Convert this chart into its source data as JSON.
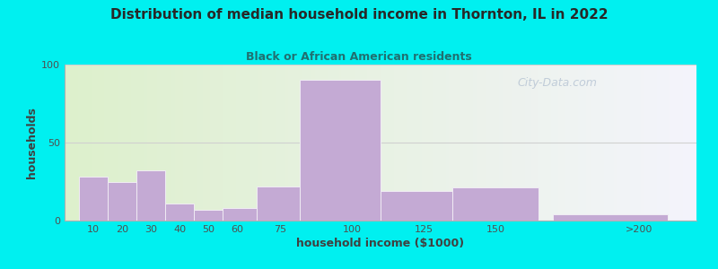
{
  "title": "Distribution of median household income in Thornton, IL in 2022",
  "subtitle": "Black or African American residents",
  "xlabel": "household income ($1000)",
  "ylabel": "households",
  "bar_heights": [
    28,
    25,
    32,
    11,
    7,
    8,
    22,
    90,
    19,
    21,
    4
  ],
  "bar_left_edges": [
    5,
    15,
    25,
    35,
    45,
    55,
    67,
    82,
    110,
    135,
    170
  ],
  "bar_right_edges": [
    15,
    25,
    35,
    45,
    55,
    67,
    82,
    110,
    135,
    165,
    210
  ],
  "bar_color": "#c4aad4",
  "bar_edgecolor": "#f0ecf4",
  "bg_outer": "#00f0f0",
  "bg_plot_left": "#ddf0cc",
  "bg_plot_right": "#f4f4fc",
  "title_color": "#282828",
  "subtitle_color": "#207070",
  "axis_label_color": "#404040",
  "tick_label_color": "#505050",
  "grid_color": "#d0d0d0",
  "ylim": [
    0,
    100
  ],
  "yticks": [
    0,
    50,
    100
  ],
  "xtick_labels": [
    "10",
    "20",
    "30",
    "40",
    "50",
    "60",
    "75",
    "100",
    "125",
    "150",
    ">200"
  ],
  "xtick_positions": [
    10,
    20,
    30,
    40,
    50,
    60,
    75,
    100,
    125,
    150,
    200
  ],
  "watermark": "City-Data.com",
  "xlim_left": 0,
  "xlim_right": 220
}
